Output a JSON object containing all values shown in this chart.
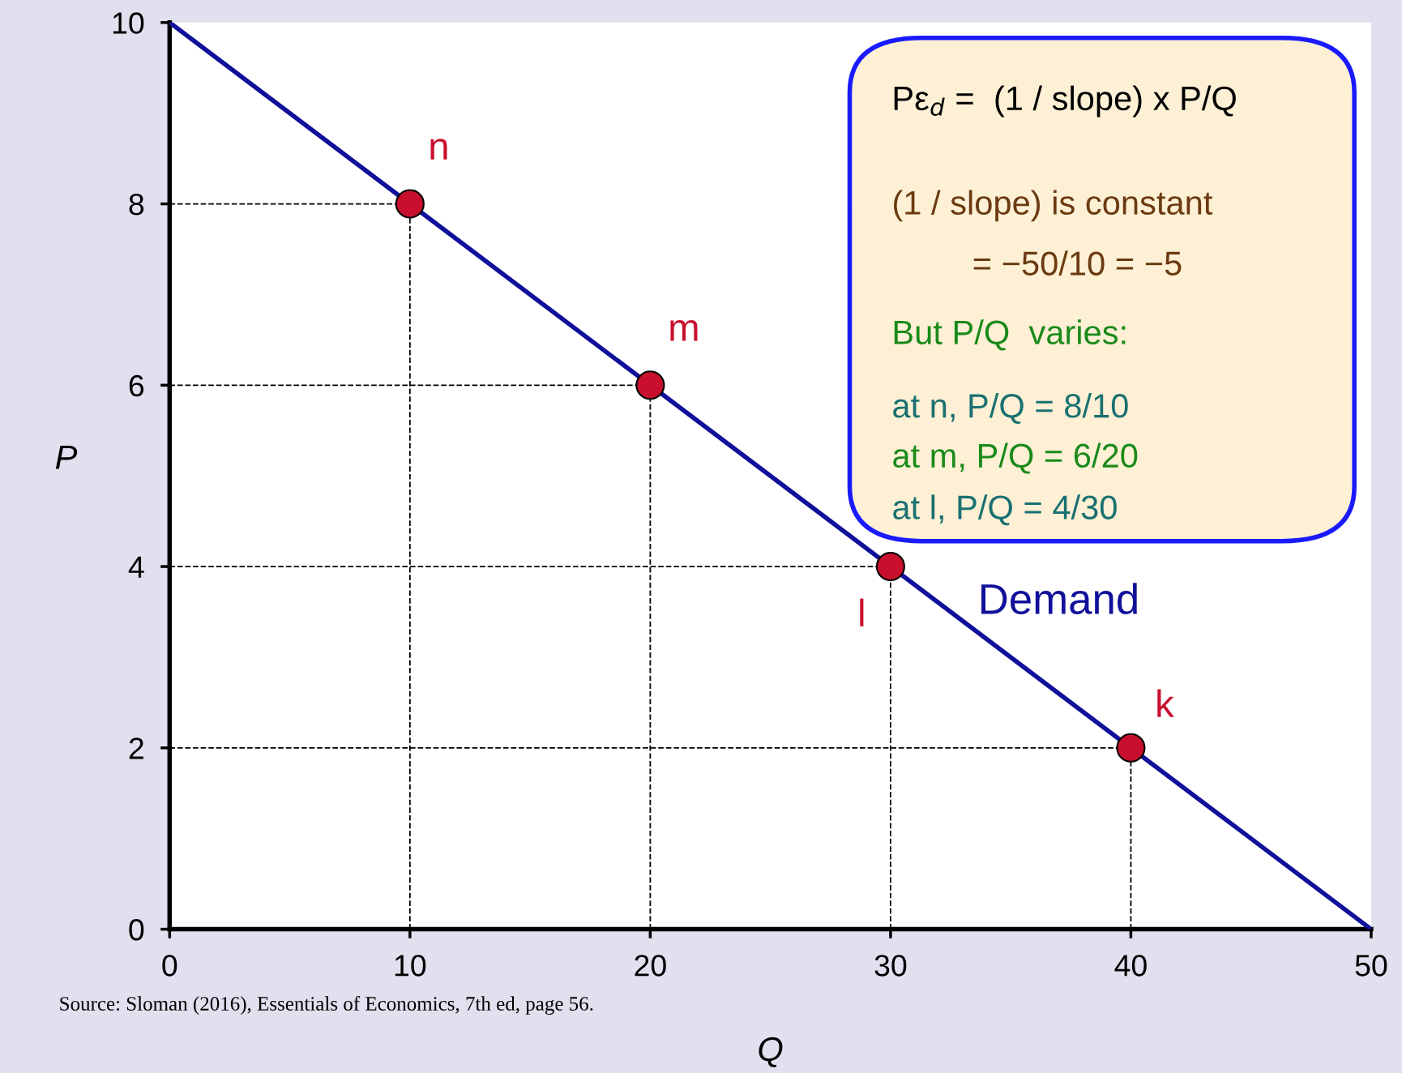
{
  "chart_data": {
    "type": "line",
    "xlabel": "Q",
    "ylabel": "P",
    "xlim": [
      0,
      50
    ],
    "ylim": [
      0,
      10
    ],
    "xticks": [
      0,
      10,
      20,
      30,
      40,
      50
    ],
    "yticks": [
      0,
      2,
      4,
      6,
      8,
      10
    ],
    "series": [
      {
        "name": "Demand",
        "color": "#10109a",
        "x": [
          0,
          50
        ],
        "values": [
          10,
          0
        ],
        "marker": "none",
        "line_style": "solid"
      },
      {
        "type": "scatter",
        "color": "#c8102e",
        "x": [
          10,
          20,
          30,
          40
        ],
        "values": [
          8,
          6,
          4,
          2
        ],
        "marker": "circle"
      }
    ],
    "annotations": [
      {
        "text": "n",
        "x": 10,
        "y": 8
      },
      {
        "text": "m",
        "x": 20,
        "y": 6
      },
      {
        "text": "l",
        "x": 30,
        "y": 4
      },
      {
        "text": "k",
        "x": 40,
        "y": 2
      },
      "Pε$_{d}$ =  (1 / slope) x P/Q",
      "(1 / slope) is constant",
      "= −50/10 = −5",
      "But P/Q  varies:",
      "at n, P/Q = 8/10",
      "at m, P/Q = 6/20",
      "at l, P/Q = 4/30",
      "Source: Sloman (2016), Essentials of Economics, 7th ed, page 56."
    ]
  }
}
